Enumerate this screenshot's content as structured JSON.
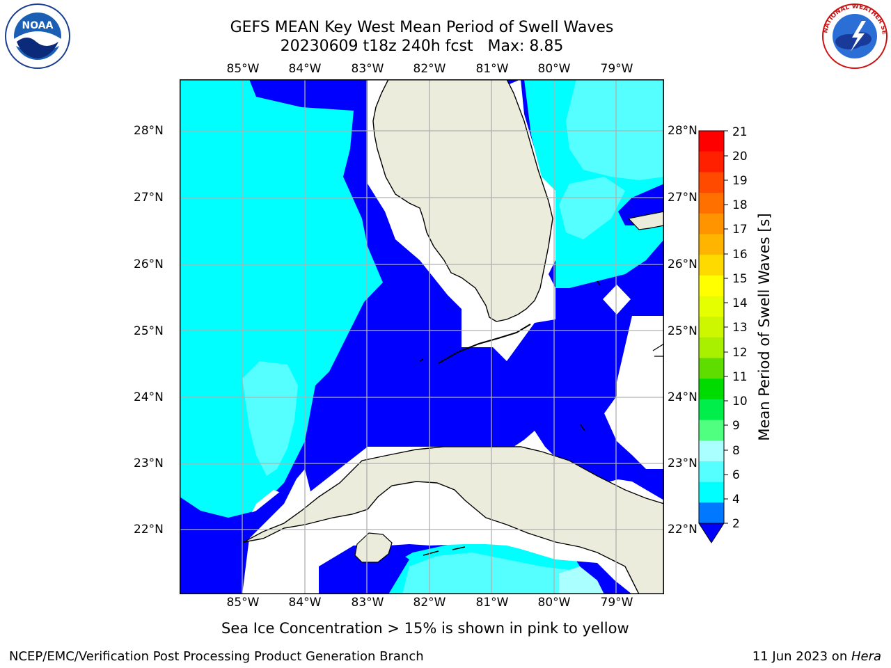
{
  "title": {
    "line1": "GEFS MEAN Key West Mean Period of Swell Waves",
    "line2": "20230609 t18z 240h fcst   Max: 8.85"
  },
  "logos": {
    "left": {
      "icon": "noaa-logo",
      "text": "NOAA"
    },
    "right": {
      "icon": "nws-logo",
      "text": "NATIONAL WEATHER SERVICE"
    }
  },
  "map": {
    "lon_labels": [
      "85°W",
      "84°W",
      "83°W",
      "82°W",
      "81°W",
      "80°W",
      "79°W"
    ],
    "lat_labels": [
      "28°N",
      "27°N",
      "26°N",
      "25°N",
      "24°N",
      "23°N",
      "22°N"
    ],
    "colors": {
      "level_2_4": "#0000ff",
      "level_4_6": "#00ffff",
      "level_6_8": "#55ffff",
      "level_8_9": "#aaffff",
      "land": "#ececdc",
      "gridline": "#b0b0b0"
    }
  },
  "colorbar": {
    "label": "Mean Period of Swell Waves [s]",
    "ticks": [
      "21",
      "20",
      "19",
      "18",
      "17",
      "16",
      "15",
      "14",
      "13",
      "12",
      "11",
      "10",
      "9",
      "8",
      "6",
      "4",
      "2"
    ],
    "colors": [
      "#ff0000",
      "#ff2000",
      "#ff4a00",
      "#ff7000",
      "#ff9400",
      "#ffb400",
      "#ffda00",
      "#ffff00",
      "#e6ff00",
      "#ccf700",
      "#a8f000",
      "#5fdc00",
      "#00dc00",
      "#00ee4a",
      "#50ff80",
      "#aaffff",
      "#55ffff",
      "#00ffff",
      "#0078ff"
    ],
    "extend_color": "#0000ff"
  },
  "note": "Sea Ice Concentration > 15% is shown in pink to yellow",
  "footer": {
    "left": "NCEP/EMC/Verification Post Processing Product Generation Branch",
    "date": "11 Jun 2023 on ",
    "host": "Hera"
  }
}
